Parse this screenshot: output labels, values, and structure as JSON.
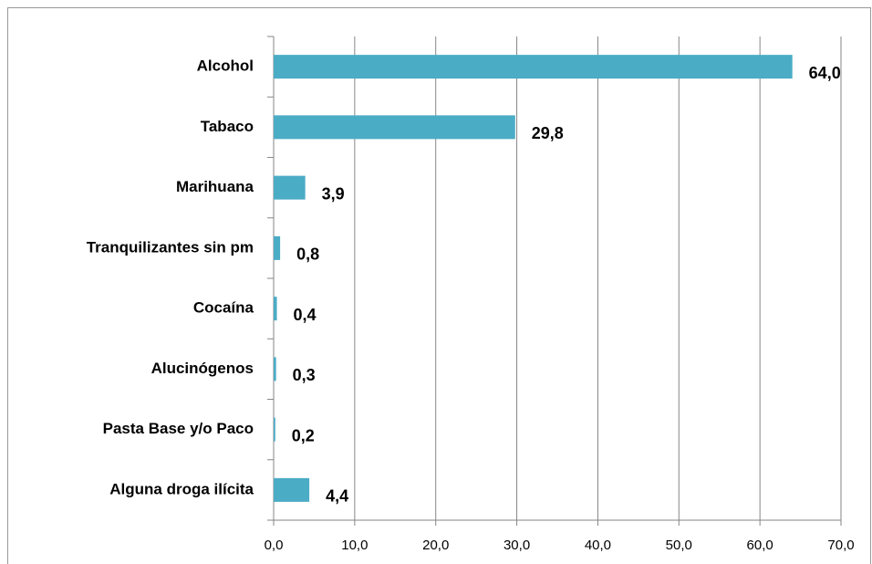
{
  "chart_data": {
    "type": "hbar",
    "categories": [
      "Alcohol",
      "Tabaco",
      "Marihuana",
      "Tranquilizantes sin pm",
      "Cocaína",
      "Alucinógenos",
      "Pasta Base y/o Paco",
      "Alguna droga ilícita"
    ],
    "values": [
      64.0,
      29.8,
      3.9,
      0.8,
      0.4,
      0.3,
      0.2,
      4.4
    ],
    "value_labels": [
      "64,0",
      "29,8",
      "3,9",
      "0,8",
      "0,4",
      "0,3",
      "0,2",
      "4,4"
    ],
    "color": "#4bacc6",
    "xlim": [
      0,
      70
    ],
    "xticks": [
      {
        "value": 0,
        "label": "0,0"
      },
      {
        "value": 10,
        "label": "10,0"
      },
      {
        "value": 20,
        "label": "20,0"
      },
      {
        "value": 30,
        "label": "30,0"
      },
      {
        "value": 40,
        "label": "40,0"
      },
      {
        "value": 50,
        "label": "50,0"
      },
      {
        "value": 60,
        "label": "60,0"
      },
      {
        "value": 70,
        "label": "70,0"
      }
    ],
    "grid": true
  }
}
